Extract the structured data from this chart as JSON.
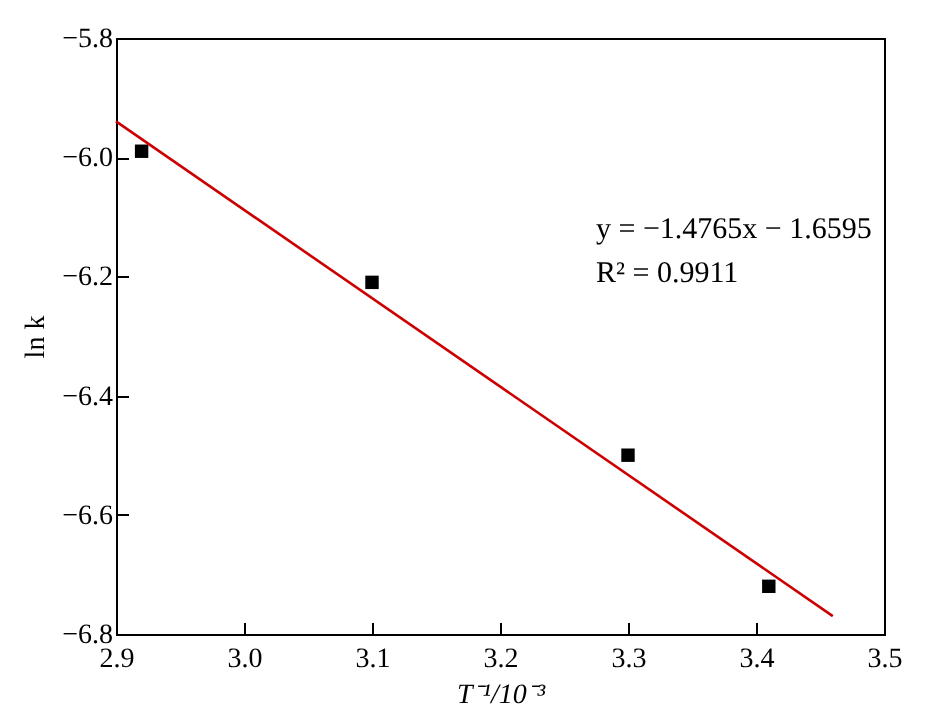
{
  "chart_data": {
    "type": "scatter",
    "xlabel": "T⁻¹/10⁻³",
    "ylabel": "ln k",
    "xlim": [
      2.9,
      3.5
    ],
    "ylim": [
      -6.8,
      -5.8
    ],
    "xticks": [
      {
        "value": 2.9,
        "label": "2.9"
      },
      {
        "value": 3.0,
        "label": "3.0"
      },
      {
        "value": 3.1,
        "label": "3.1"
      },
      {
        "value": 3.2,
        "label": "3.2"
      },
      {
        "value": 3.3,
        "label": "3.3"
      },
      {
        "value": 3.4,
        "label": "3.4"
      },
      {
        "value": 3.5,
        "label": "3.5"
      }
    ],
    "yticks": [
      {
        "value": -6.8,
        "label": "−6.8"
      },
      {
        "value": -6.6,
        "label": "−6.6"
      },
      {
        "value": -6.4,
        "label": "−6.4"
      },
      {
        "value": -6.2,
        "label": "−6.2"
      },
      {
        "value": -6.0,
        "label": "−6.0"
      },
      {
        "value": -5.8,
        "label": "−5.8"
      }
    ],
    "series": [
      {
        "color": "#000000",
        "marker": "square",
        "x": [
          2.92,
          3.1,
          3.3,
          3.41
        ],
        "values": [
          -5.99,
          -6.21,
          -6.5,
          -6.72
        ]
      },
      {
        "type": "line",
        "color": "#cc0000",
        "marker": "none",
        "line_style": "solid",
        "x": [
          2.9,
          3.46
        ],
        "values": [
          -5.94,
          -6.77
        ]
      }
    ],
    "annotations": [
      "y = −1.4765x − 1.6595",
      "R² = 0.9911"
    ],
    "grid": false
  }
}
